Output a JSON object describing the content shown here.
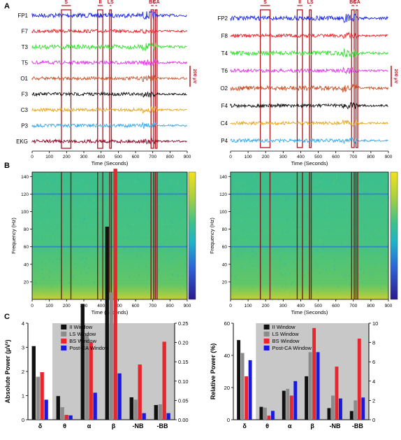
{
  "panel_labels": {
    "a": "A",
    "b": "B",
    "c": "C"
  },
  "events": {
    "labels": [
      "S",
      "II",
      "LS",
      "BS",
      "CA"
    ],
    "time_ranges": [
      [
        170,
        225
      ],
      [
        380,
        410
      ],
      [
        450,
        460
      ],
      [
        690,
        705
      ],
      [
        715,
        725
      ]
    ]
  },
  "eeg_panels": [
    {
      "channels": [
        "FP1",
        "F7",
        "T3",
        "T5",
        "O1",
        "F3",
        "C3",
        "P3",
        "EKG"
      ],
      "colors": [
        "#1f2be6",
        "#e8262d",
        "#3ee03a",
        "#e03ae8",
        "#c8552c",
        "#111111",
        "#e6a825",
        "#3aa8e6",
        "#8b0d2a"
      ],
      "scale_bar": "200 μV"
    },
    {
      "channels": [
        "FP2",
        "F8",
        "T4",
        "T6",
        "O2",
        "F4",
        "C4",
        "P4"
      ],
      "colors": [
        "#1f2be6",
        "#e8262d",
        "#3ee03a",
        "#e03ae8",
        "#c8552c",
        "#111111",
        "#e6a825",
        "#3aa8e6"
      ],
      "scale_bar": "200 μV"
    }
  ],
  "time_axis": {
    "label": "Time (Seconds)",
    "ticks": [
      "0",
      "100",
      "200",
      "300",
      "400",
      "500",
      "600",
      "700",
      "800",
      "900"
    ]
  },
  "spectrogram": {
    "ylabel": "Frequency (Hz)",
    "yticks": [
      "20",
      "40",
      "60",
      "80",
      "100",
      "120",
      "140"
    ],
    "xlabel": "Time (Seconds)",
    "noise_lines_hz": [
      60,
      120
    ],
    "colormap": [
      "#2a1a8c",
      "#2d64d8",
      "#1fb3c8",
      "#3cc18a",
      "#a8d040",
      "#f2e21c"
    ]
  },
  "colors": {
    "events": "#b0151c",
    "chart_bg": "#c8c8c8"
  },
  "chart_data": [
    {
      "type": "bar",
      "categories": [
        "δ",
        "θ",
        "α",
        "β",
        "γ-NB",
        "γ-BB"
      ],
      "ylabel": "Absolute Power (μV²)",
      "ylim": [
        0,
        4
      ],
      "y2lim": [
        0,
        0.25
      ],
      "yticks": [
        "0",
        "1",
        "2",
        "3",
        "4"
      ],
      "y2ticks": [
        "0.00",
        "0.05",
        "0.10",
        "0.15",
        "0.20",
        "0.25"
      ],
      "visible_category_labels": [
        "δ",
        "θ",
        "α",
        "β",
        "-NB",
        "-BB"
      ],
      "series": [
        {
          "name": "II Window",
          "color": "#111111",
          "values": [
            3.05,
            0.98,
            0.3,
            0.5,
            0.058,
            0.038
          ]
        },
        {
          "name": "LS Window",
          "color": "#8c8c8c",
          "values": [
            1.78,
            0.52,
            0.22,
            0.33,
            0.052,
            0.04
          ]
        },
        {
          "name": "BS Window",
          "color": "#e8262d",
          "values": [
            1.97,
            0.2,
            0.2,
            0.65,
            0.143,
            0.202
          ]
        },
        {
          "name": "Post-CA Window",
          "color": "#1a1adf",
          "values": [
            0.83,
            0.18,
            0.07,
            0.12,
            0.017,
            0.017
          ]
        }
      ],
      "legend": "top-right"
    },
    {
      "type": "bar",
      "categories": [
        "δ",
        "θ",
        "α",
        "β",
        "γ-NB",
        "γ-BB"
      ],
      "ylabel": "Relative Power (%)",
      "ylim": [
        0,
        60
      ],
      "y2lim": [
        0,
        10
      ],
      "yticks": [
        "0",
        "20",
        "40",
        "60"
      ],
      "y2ticks": [
        "0",
        "2",
        "4",
        "6",
        "8",
        "10"
      ],
      "visible_category_labels": [
        "δ",
        "θ",
        "α",
        "β",
        "-NB",
        "-BB"
      ],
      "series": [
        {
          "name": "II Window",
          "color": "#111111",
          "values": [
            49.5,
            8.0,
            3.0,
            4.5,
            1.2,
            0.9
          ]
        },
        {
          "name": "LS Window",
          "color": "#8c8c8c",
          "values": [
            41.5,
            7.5,
            3.2,
            7.0,
            2.5,
            2.0
          ]
        },
        {
          "name": "BS Window",
          "color": "#e8262d",
          "values": [
            27.0,
            2.5,
            2.5,
            9.5,
            5.5,
            8.4
          ]
        },
        {
          "name": "Post-CA Window",
          "color": "#1a1adf",
          "values": [
            37.0,
            5.5,
            4.0,
            7.0,
            2.2,
            2.3
          ]
        }
      ],
      "legend": "top-right"
    }
  ]
}
